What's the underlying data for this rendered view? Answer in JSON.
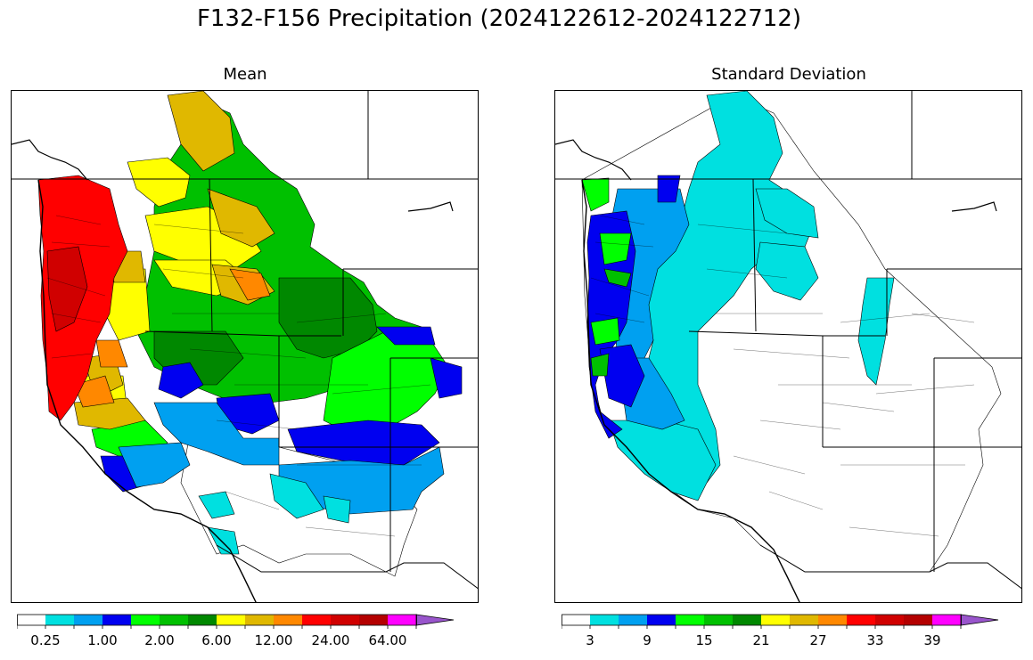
{
  "title": "F132-F156 Precipitation (2024122612-2024122712)",
  "panels": [
    {
      "id": "mean",
      "title": "Mean",
      "colorbar": {
        "colors": [
          "#ffffff",
          "#00e0e0",
          "#00a0f0",
          "#0000f0",
          "#00ff00",
          "#00c000",
          "#008800",
          "#ffff00",
          "#e0b800",
          "#ff8800",
          "#ff0000",
          "#d00000",
          "#b40000",
          "#ff00ff",
          "#9955cc"
        ],
        "extend": "max",
        "tick_labels": [
          "0.25",
          "1.00",
          "2.00",
          "6.00",
          "12.00",
          "24.00",
          "64.00"
        ]
      }
    },
    {
      "id": "sd",
      "title": "Standard Deviation",
      "colorbar": {
        "colors": [
          "#ffffff",
          "#00e0e0",
          "#00a0f0",
          "#0000f0",
          "#00ff00",
          "#00c000",
          "#008800",
          "#ffff00",
          "#e0b800",
          "#ff8800",
          "#ff0000",
          "#d00000",
          "#b40000",
          "#ff00ff",
          "#9955cc"
        ],
        "extend": "max",
        "tick_labels": [
          "3",
          "9",
          "15",
          "21",
          "27",
          "33",
          "39"
        ]
      }
    }
  ]
}
